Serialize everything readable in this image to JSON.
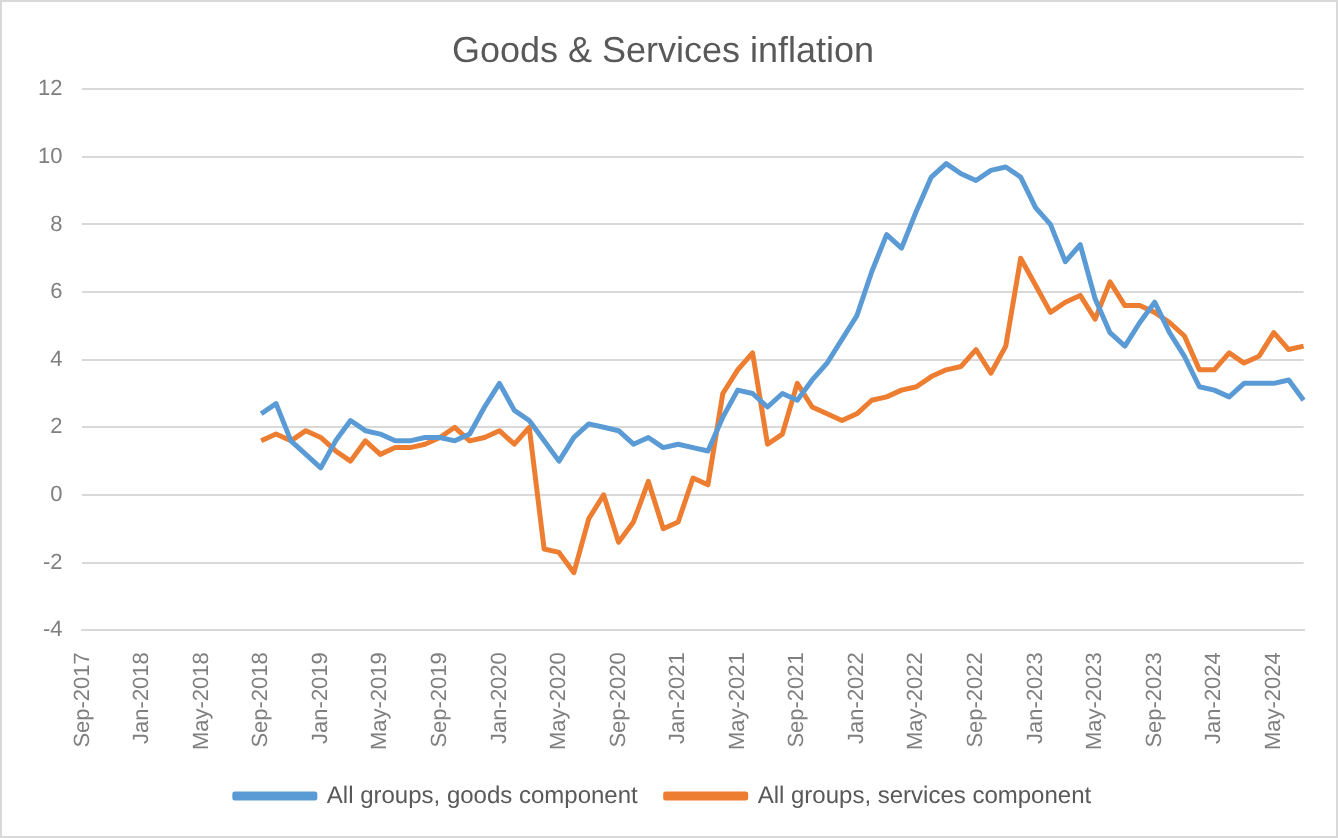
{
  "chart_data": {
    "type": "line",
    "title": "Goods & Services inflation",
    "categories": [
      "Sep-2017",
      null,
      null,
      null,
      "Jan-2018",
      null,
      null,
      null,
      "May-2018",
      null,
      null,
      null,
      "Sep-2018",
      null,
      null,
      null,
      "Jan-2019",
      null,
      null,
      null,
      "May-2019",
      null,
      null,
      null,
      "Sep-2019",
      null,
      null,
      null,
      "Jan-2020",
      null,
      null,
      null,
      "May-2020",
      null,
      null,
      null,
      "Sep-2020",
      null,
      null,
      null,
      "Jan-2021",
      null,
      null,
      null,
      "May-2021",
      null,
      null,
      null,
      "Sep-2021",
      null,
      null,
      null,
      "Jan-2022",
      null,
      null,
      null,
      "May-2022",
      null,
      null,
      null,
      "Sep-2022",
      null,
      null,
      null,
      "Jan-2023",
      null,
      null,
      null,
      "May-2023",
      null,
      null,
      null,
      "Sep-2023",
      null,
      null,
      null,
      "Jan-2024",
      null,
      null,
      null,
      "May-2024",
      null,
      null
    ],
    "series": [
      {
        "name": "All groups, goods component",
        "color": "#5b9bd5",
        "values": [
          null,
          null,
          null,
          null,
          null,
          null,
          null,
          null,
          null,
          null,
          null,
          null,
          2.4,
          2.7,
          1.6,
          1.2,
          0.8,
          1.6,
          2.2,
          1.9,
          1.8,
          1.6,
          1.6,
          1.7,
          1.7,
          1.6,
          1.8,
          2.6,
          3.3,
          2.5,
          2.2,
          1.6,
          1.0,
          1.7,
          2.1,
          2.0,
          1.9,
          1.5,
          1.7,
          1.4,
          1.5,
          1.4,
          1.3,
          2.3,
          3.1,
          3.0,
          2.6,
          3.0,
          2.8,
          3.4,
          3.9,
          4.6,
          5.3,
          6.6,
          7.7,
          7.3,
          8.4,
          9.4,
          9.8,
          9.5,
          9.3,
          9.6,
          9.7,
          9.4,
          8.5,
          8.0,
          6.9,
          7.4,
          5.8,
          4.8,
          4.4,
          5.1,
          5.7,
          4.8,
          4.1,
          3.2,
          3.1,
          2.9,
          3.3,
          3.3,
          3.3,
          3.4,
          2.8
        ]
      },
      {
        "name": "All groups, services component",
        "color": "#ed7d31",
        "values": [
          null,
          null,
          null,
          null,
          null,
          null,
          null,
          null,
          null,
          null,
          null,
          null,
          1.6,
          1.8,
          1.6,
          1.9,
          1.7,
          1.3,
          1.0,
          1.6,
          1.2,
          1.4,
          1.4,
          1.5,
          1.7,
          2.0,
          1.6,
          1.7,
          1.9,
          1.5,
          2.0,
          -1.6,
          -1.7,
          -2.3,
          -0.7,
          0.0,
          -1.4,
          -0.8,
          0.4,
          -1.0,
          -0.8,
          0.5,
          0.3,
          3.0,
          3.7,
          4.2,
          1.5,
          1.8,
          3.3,
          2.6,
          2.4,
          2.2,
          2.4,
          2.8,
          2.9,
          3.1,
          3.2,
          3.5,
          3.7,
          3.8,
          4.3,
          3.6,
          4.4,
          7.0,
          6.2,
          5.4,
          5.7,
          5.9,
          5.2,
          6.3,
          5.6,
          5.6,
          5.4,
          5.1,
          4.7,
          3.7,
          3.7,
          4.2,
          3.9,
          4.1,
          4.8,
          4.3,
          4.4
        ]
      }
    ],
    "ylim": [
      -4,
      12
    ],
    "yticks": [
      -4,
      -2,
      0,
      2,
      4,
      6,
      8,
      10,
      12
    ],
    "grid": "y",
    "legend": "bottom",
    "marker": "none",
    "line_style": "solid"
  }
}
